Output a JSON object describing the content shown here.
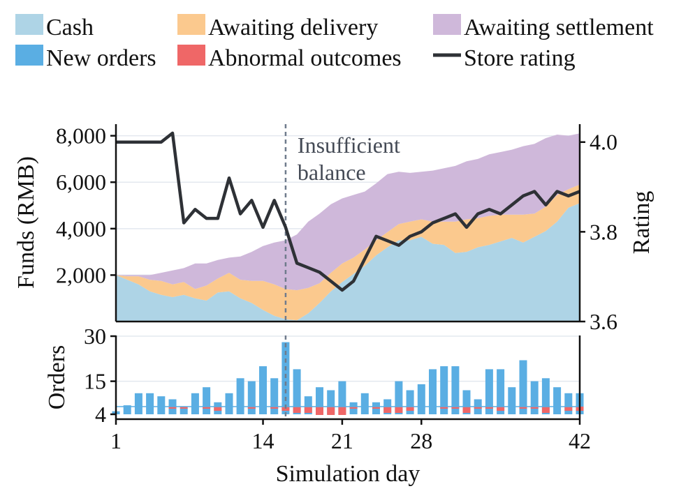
{
  "chart_data": [
    {
      "type": "area",
      "subtype": "stacked-area-with-line",
      "x": [
        1,
        2,
        3,
        4,
        5,
        6,
        7,
        8,
        9,
        10,
        11,
        12,
        13,
        14,
        15,
        16,
        17,
        18,
        19,
        20,
        21,
        22,
        23,
        24,
        25,
        26,
        27,
        28,
        29,
        30,
        31,
        32,
        33,
        34,
        35,
        36,
        37,
        38,
        39,
        40,
        41,
        42
      ],
      "xlabel": "Simulation day",
      "x_ticks": [
        1,
        14,
        21,
        28,
        42
      ],
      "xlim": [
        1,
        42
      ],
      "ylabel": "Funds (RMB)",
      "ylim": [
        0,
        8500
      ],
      "y_ticks": [
        2000,
        4000,
        6000,
        8000
      ],
      "y_tick_labels": [
        "2,000",
        "4,000",
        "6,000",
        "8,000"
      ],
      "series": [
        {
          "name": "Cash",
          "color": "#aed4e6",
          "values": [
            2000,
            1800,
            1600,
            1300,
            1150,
            1050,
            1150,
            1000,
            900,
            1250,
            1300,
            1000,
            800,
            500,
            250,
            100,
            50,
            350,
            800,
            1300,
            1700,
            2050,
            2400,
            2850,
            3200,
            3500,
            3500,
            3650,
            3350,
            3300,
            2950,
            3000,
            3200,
            3300,
            3450,
            3600,
            3400,
            3650,
            3900,
            4300,
            4900,
            5100
          ]
        },
        {
          "name": "Awaiting delivery",
          "color": "#fbc98e",
          "values": [
            0,
            150,
            350,
            500,
            600,
            550,
            550,
            400,
            650,
            600,
            800,
            800,
            950,
            1250,
            1350,
            1300,
            1300,
            1100,
            850,
            800,
            800,
            700,
            700,
            650,
            650,
            700,
            800,
            750,
            950,
            1000,
            1350,
            1400,
            1250,
            1250,
            1150,
            1000,
            1200,
            1000,
            1050,
            1150,
            800,
            800
          ]
        },
        {
          "name": "Awaiting settlement",
          "color": "#cfb8da",
          "values": [
            0,
            50,
            50,
            200,
            350,
            600,
            600,
            1100,
            950,
            800,
            650,
            1000,
            1250,
            1500,
            1800,
            2100,
            2400,
            2850,
            3000,
            2950,
            2800,
            2700,
            2500,
            2450,
            2500,
            2250,
            2100,
            2050,
            2200,
            2300,
            2400,
            2500,
            2550,
            2650,
            2700,
            2800,
            2950,
            3000,
            2950,
            2600,
            2300,
            2200
          ]
        }
      ],
      "secondary_axis": {
        "label": "Rating",
        "ylim": [
          3.6,
          4.04
        ],
        "ticks": [
          3.6,
          3.8,
          4.0
        ],
        "tick_labels": [
          "3.6",
          "3.8",
          "4.0"
        ],
        "series": {
          "name": "Store rating",
          "color": "#2e3136",
          "values": [
            4.0,
            4.0,
            4.0,
            4.0,
            4.0,
            4.02,
            3.82,
            3.85,
            3.83,
            3.83,
            3.92,
            3.84,
            3.87,
            3.81,
            3.87,
            3.81,
            3.73,
            3.72,
            3.71,
            3.69,
            3.67,
            3.69,
            3.74,
            3.79,
            3.78,
            3.77,
            3.79,
            3.8,
            3.82,
            3.83,
            3.84,
            3.81,
            3.84,
            3.85,
            3.84,
            3.86,
            3.88,
            3.89,
            3.86,
            3.89,
            3.88,
            3.89
          ]
        }
      },
      "annotations": [
        {
          "x": 16,
          "text_lines": [
            "Insufficient",
            "balance"
          ],
          "style": "dashed vertical line"
        }
      ]
    },
    {
      "type": "bar",
      "x": [
        1,
        2,
        3,
        4,
        5,
        6,
        7,
        8,
        9,
        10,
        11,
        12,
        13,
        14,
        15,
        16,
        17,
        18,
        19,
        20,
        21,
        22,
        23,
        24,
        25,
        26,
        27,
        28,
        29,
        30,
        31,
        32,
        33,
        34,
        35,
        36,
        37,
        38,
        39,
        40,
        41,
        42
      ],
      "xlabel": "Simulation day",
      "ylabel": "Orders",
      "y_ticks": [
        4,
        15,
        30
      ],
      "y_tick_labels": [
        "4",
        "15",
        "30"
      ],
      "baseline": 4,
      "series": [
        {
          "name": "New orders",
          "color": "#5aaee3",
          "values": [
            5,
            7,
            11,
            11,
            10,
            9,
            6,
            11,
            13,
            8,
            11,
            16,
            15,
            20,
            16,
            28,
            19,
            10,
            13,
            12,
            15,
            8,
            11,
            8,
            9,
            15,
            12,
            14,
            19,
            20,
            20,
            12,
            9,
            19,
            19,
            13,
            22,
            15,
            16,
            13,
            11,
            11
          ]
        },
        {
          "name": "Abnormal outcomes",
          "color": "#ef6767",
          "values": [
            0,
            0,
            0,
            0,
            0,
            1,
            1,
            0,
            1,
            2,
            0,
            0,
            1,
            0,
            1,
            2,
            3,
            3,
            4,
            4,
            4,
            1,
            0,
            1,
            3,
            3,
            2,
            0,
            0,
            1,
            1,
            3,
            1,
            1,
            2,
            0,
            1,
            1,
            3,
            0,
            2,
            2
          ]
        }
      ],
      "annotations": [
        {
          "x": 16,
          "style": "dashed vertical line"
        }
      ]
    }
  ],
  "legend": {
    "placement": "top",
    "items": [
      {
        "label": "Cash",
        "kind": "patch",
        "color": "#aed4e6"
      },
      {
        "label": "Awaiting delivery",
        "kind": "patch",
        "color": "#fbc98e"
      },
      {
        "label": "Awaiting settlement",
        "kind": "patch",
        "color": "#cfb8da"
      },
      {
        "label": "New orders",
        "kind": "patch",
        "color": "#5aaee3"
      },
      {
        "label": "Abnormal outcomes",
        "kind": "patch",
        "color": "#ef6767"
      },
      {
        "label": "Store rating",
        "kind": "line",
        "color": "#2e3136"
      }
    ]
  }
}
